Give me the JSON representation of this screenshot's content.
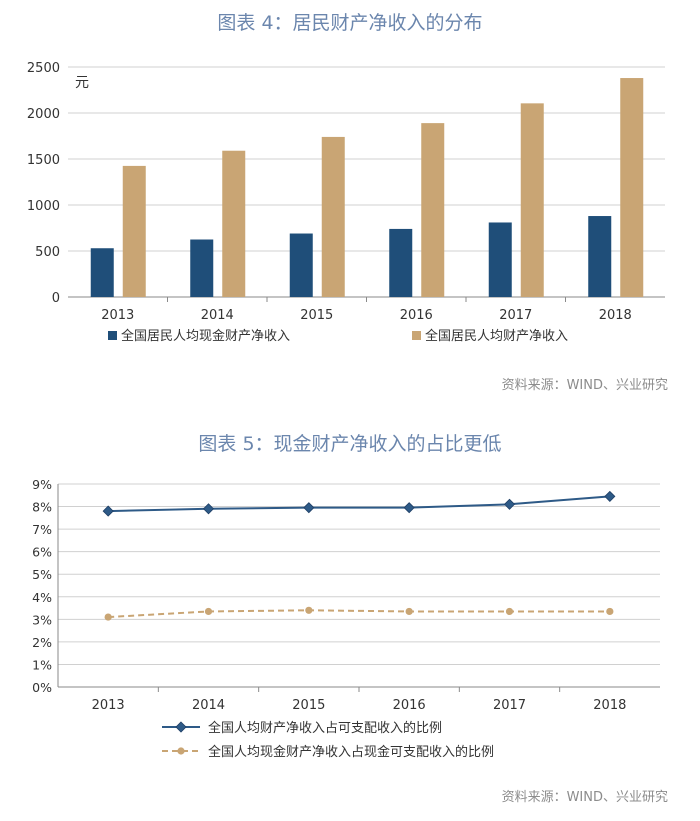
{
  "source": "资料来源：WIND、兴业研究",
  "chart_data": [
    {
      "type": "bar",
      "title": "图表 4：居民财产净收入的分布",
      "ylabel": "元",
      "ylim": [
        0,
        2500
      ],
      "yticks": [
        0,
        500,
        1000,
        1500,
        2000,
        2500
      ],
      "grid": true,
      "legend_position": "bottom",
      "categories": [
        "2013",
        "2014",
        "2015",
        "2016",
        "2017",
        "2018"
      ],
      "series": [
        {
          "name": "全国居民人均现金财产净收入",
          "color": "#1f4e79",
          "values": [
            530,
            625,
            690,
            740,
            810,
            880
          ]
        },
        {
          "name": "全国居民人均财产净收入",
          "color": "#c9a574",
          "values": [
            1425,
            1590,
            1740,
            1890,
            2105,
            2380
          ]
        }
      ]
    },
    {
      "type": "line",
      "title": "图表 5：现金财产净收入的占比更低",
      "ylim": [
        0,
        9
      ],
      "yticks": [
        "0%",
        "1%",
        "2%",
        "3%",
        "4%",
        "5%",
        "6%",
        "7%",
        "8%",
        "9%"
      ],
      "grid": true,
      "legend_position": "bottom",
      "x": [
        "2013",
        "2014",
        "2015",
        "2016",
        "2017",
        "2018"
      ],
      "series": [
        {
          "name": "全国人均财产净收入占可支配收入的比例",
          "color": "#2e5a87",
          "style": "solid",
          "values": [
            7.8,
            7.9,
            7.95,
            7.95,
            8.1,
            8.45
          ]
        },
        {
          "name": "全国人均现金财产净收入占现金可支配收入的比例",
          "color": "#c9a574",
          "style": "dashed",
          "values": [
            3.1,
            3.35,
            3.4,
            3.35,
            3.35,
            3.35
          ]
        }
      ]
    }
  ]
}
